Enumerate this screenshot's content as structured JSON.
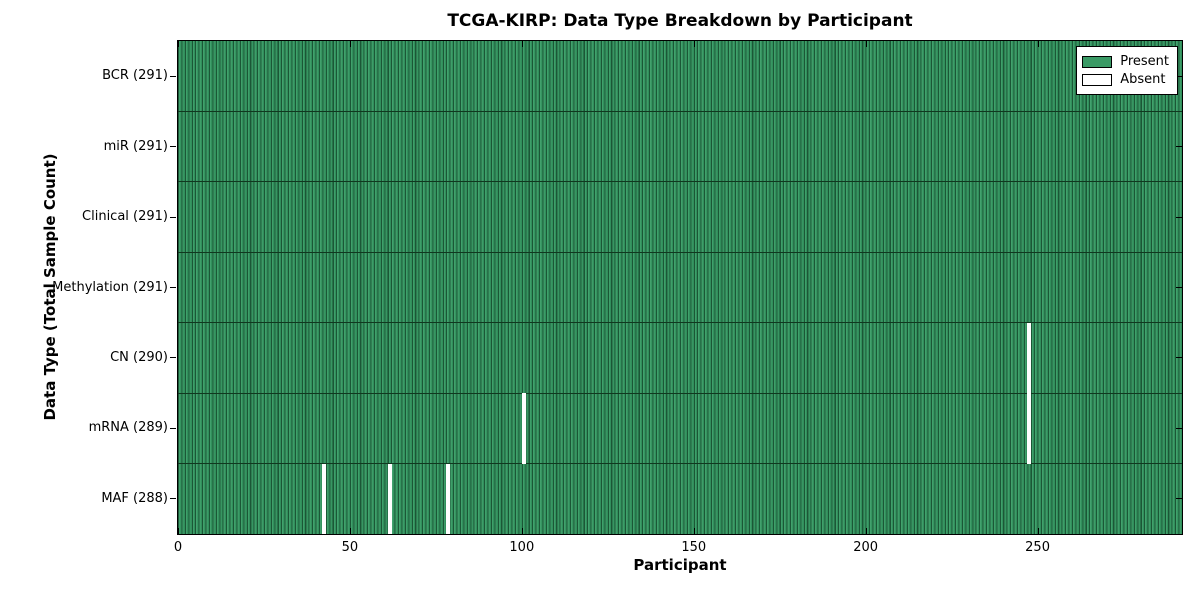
{
  "title": "TCGA-KIRP: Data Type Breakdown by Participant",
  "axes": {
    "xlabel": "Participant",
    "ylabel": "Data Type (Total Sample Count)"
  },
  "legend": {
    "position": "upper right",
    "items": [
      {
        "label": "Present",
        "swatch": "present"
      },
      {
        "label": "Absent",
        "swatch": "absent"
      }
    ]
  },
  "colors": {
    "present_fill": "#3a9a65",
    "present_fill_light": "#45a470",
    "present_fill_mid": "#318f5c",
    "bar_edge": "#1b5736",
    "absent_fill": "#ffffff",
    "row_line": "#10381f",
    "frame": "#000000"
  },
  "chart_data": {
    "type": "heatmap",
    "title": "TCGA-KIRP: Data Type Breakdown by Participant",
    "xlabel": "Participant",
    "ylabel": "Data Type (Total Sample Count)",
    "n_participants": 291,
    "xlim": [
      0,
      292
    ],
    "x_tick_values": [
      0,
      50,
      100,
      150,
      200,
      250
    ],
    "grid": false,
    "legend_entries": [
      "Present",
      "Absent"
    ],
    "legend_position": "upper right",
    "rows": [
      {
        "label": "BCR (291)",
        "data_type": "BCR",
        "present_count": 291,
        "absent_participants": []
      },
      {
        "label": "miR (291)",
        "data_type": "miR",
        "present_count": 291,
        "absent_participants": []
      },
      {
        "label": "Clinical (291)",
        "data_type": "Clinical",
        "present_count": 291,
        "absent_participants": []
      },
      {
        "label": "Methylation (291)",
        "data_type": "Methylation",
        "present_count": 291,
        "absent_participants": []
      },
      {
        "label": "CN (290)",
        "data_type": "CN",
        "present_count": 290,
        "absent_participants": [
          247
        ]
      },
      {
        "label": "mRNA (289)",
        "data_type": "mRNA",
        "present_count": 289,
        "absent_participants": [
          100,
          247
        ]
      },
      {
        "label": "MAF (288)",
        "data_type": "MAF",
        "present_count": 288,
        "absent_participants": [
          42,
          61,
          78
        ]
      }
    ]
  }
}
